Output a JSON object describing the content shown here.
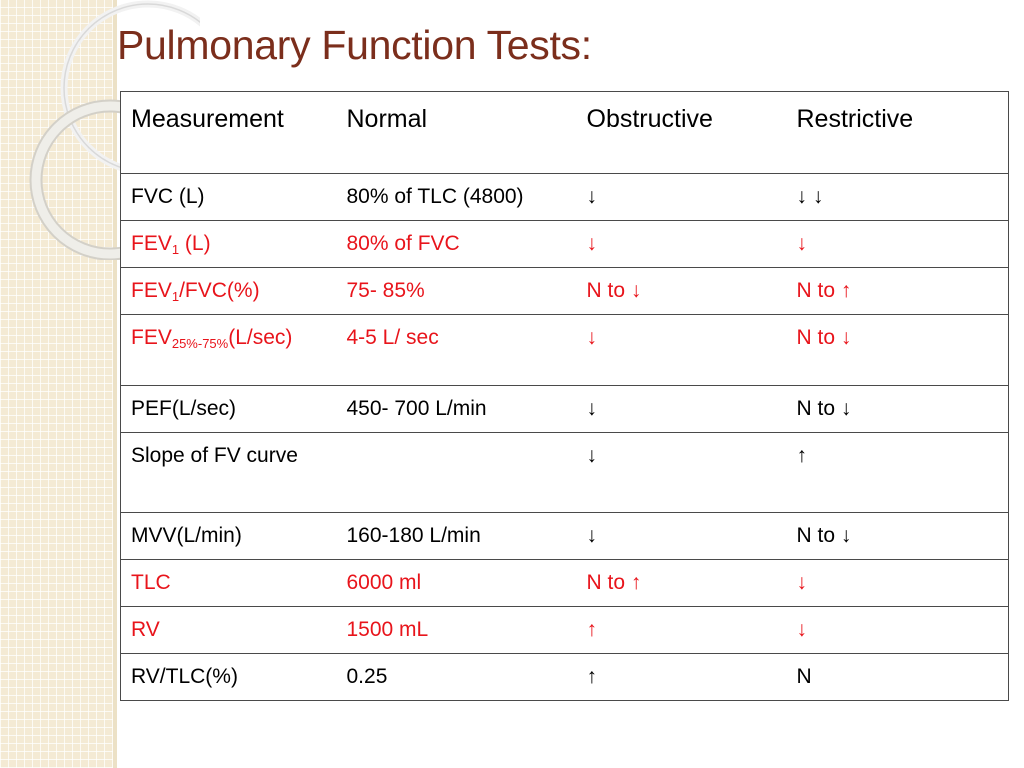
{
  "title": "Pulmonary Function Tests:",
  "columns": [
    "Measurement",
    "Normal",
    "Obstructive",
    "Restrictive"
  ],
  "rows": [
    {
      "measurement": "FVC (L)",
      "normal": "80% of TLC (4800)",
      "obstructive": "↓",
      "restrictive": "↓ ↓",
      "highlight": false
    },
    {
      "measurement": {
        "base": "FEV",
        "sub": "1",
        "suffix": " (L)"
      },
      "normal": "80% of FVC",
      "obstructive": "↓",
      "restrictive": "↓",
      "highlight": true
    },
    {
      "measurement": {
        "base": "FEV",
        "sub": "1",
        "suffix": "/FVC(%)"
      },
      "normal": "75- 85%",
      "obstructive": "N to ↓",
      "restrictive": "N to ↑",
      "highlight": true
    },
    {
      "measurement": {
        "base": "FEV",
        "sub": "25%-75%",
        "suffix": "(L/sec)"
      },
      "normal": "4-5 L/ sec",
      "obstructive": "↓",
      "restrictive": "N to ↓",
      "highlight": true
    },
    {
      "measurement": "PEF(L/sec)",
      "normal": "450- 700 L/min",
      "obstructive": "↓",
      "restrictive": "N to ↓",
      "highlight": false
    },
    {
      "measurement": "Slope of FV curve",
      "normal": "",
      "obstructive": "↓",
      "restrictive": "↑",
      "highlight": false
    },
    {
      "measurement": "MVV(L/min)",
      "normal": "160-180 L/min",
      "obstructive": "↓",
      "restrictive": "N to ↓",
      "highlight": false
    },
    {
      "measurement": "TLC",
      "normal": "6000 ml",
      "obstructive": "N to ↑",
      "restrictive": "↓",
      "highlight": true
    },
    {
      "measurement": "RV",
      "normal": "1500 mL",
      "obstructive": "↑",
      "restrictive": "↓",
      "highlight": true
    },
    {
      "measurement": "RV/TLC(%)",
      "normal": "0.25",
      "obstructive": "↑",
      "restrictive": "N",
      "highlight": false
    }
  ],
  "colors": {
    "title": "#7b2e1c",
    "highlight_text": "#e8141b",
    "text": "#000000",
    "left_strip": "#f4ead4"
  }
}
